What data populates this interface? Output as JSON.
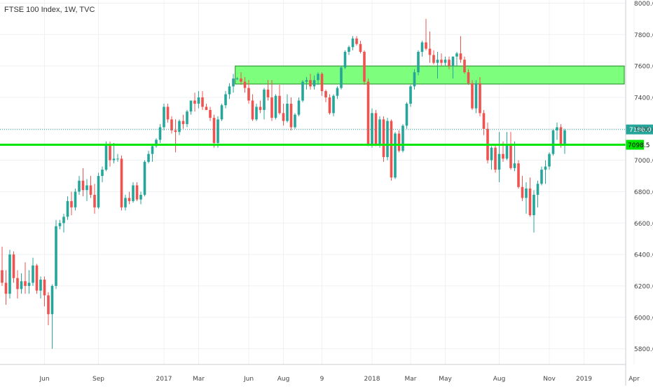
{
  "header": {
    "title": "FTSE 100 Index, 1W, TVC"
  },
  "chart_data": {
    "type": "candlestick",
    "title": "FTSE 100 Index, 1W, TVC",
    "ylim": [
      5700,
      8020
    ],
    "y_ticks": [
      5800,
      6000,
      6200,
      6400,
      6600,
      6800,
      7000,
      7200,
      7400,
      7600,
      7800,
      8000
    ],
    "x_ticks": [
      {
        "label": "Jun",
        "index": 11
      },
      {
        "label": "Sep",
        "index": 25
      },
      {
        "label": "2017",
        "index": 42
      },
      {
        "label": "Mar",
        "index": 51
      },
      {
        "label": "Jun",
        "index": 64
      },
      {
        "label": "Aug",
        "index": 73
      },
      {
        "label": "9",
        "index": 83
      },
      {
        "label": "2018",
        "index": 96
      },
      {
        "label": "Mar",
        "index": 106
      },
      {
        "label": "May",
        "index": 115
      },
      {
        "label": "Aug",
        "index": 129
      },
      {
        "label": "Nov",
        "index": 142
      },
      {
        "label": "2019",
        "index": 151
      },
      {
        "label": "Apr",
        "index": 164
      }
    ],
    "price_line": {
      "value": 7196.0,
      "label": "7196.0"
    },
    "support_line": {
      "value": 7098.5,
      "label": "7098.5",
      "color": "#00e600"
    },
    "resistance_zone": {
      "from_index": 61,
      "to_index": 171,
      "low": 7485,
      "high": 7600,
      "color": "#7dff7d"
    },
    "colors": {
      "up": "#26a69a",
      "down": "#ef5350"
    },
    "candles": [
      [
        6300,
        6450,
        6200,
        6220
      ],
      [
        6220,
        6300,
        6080,
        6150
      ],
      [
        6150,
        6430,
        6120,
        6400
      ],
      [
        6400,
        6420,
        6220,
        6250
      ],
      [
        6250,
        6300,
        6120,
        6180
      ],
      [
        6180,
        6280,
        6150,
        6230
      ],
      [
        6230,
        6350,
        6150,
        6200
      ],
      [
        6200,
        6300,
        6150,
        6220
      ],
      [
        6220,
        6380,
        6200,
        6330
      ],
      [
        6330,
        6340,
        6150,
        6170
      ],
      [
        6170,
        6260,
        6120,
        6240
      ],
      [
        6240,
        6260,
        6070,
        6140
      ],
      [
        6140,
        6160,
        5950,
        6020
      ],
      [
        6020,
        6210,
        5800,
        6200
      ],
      [
        6200,
        6620,
        6180,
        6580
      ],
      [
        6580,
        6620,
        6560,
        6600
      ],
      [
        6600,
        6660,
        6540,
        6640
      ],
      [
        6640,
        6770,
        6620,
        6740
      ],
      [
        6740,
        6800,
        6650,
        6700
      ],
      [
        6700,
        6820,
        6680,
        6800
      ],
      [
        6800,
        6900,
        6780,
        6870
      ],
      [
        6870,
        6950,
        6770,
        6810
      ],
      [
        6810,
        6880,
        6740,
        6840
      ],
      [
        6840,
        6900,
        6760,
        6780
      ],
      [
        6780,
        6850,
        6660,
        6700
      ],
      [
        6700,
        6920,
        6690,
        6900
      ],
      [
        6900,
        6960,
        6860,
        6940
      ],
      [
        6940,
        7120,
        6930,
        7100
      ],
      [
        7100,
        7120,
        6960,
        7000
      ],
      [
        7000,
        7110,
        6980,
        7010
      ],
      [
        7010,
        7040,
        6990,
        7010
      ],
      [
        7010,
        7030,
        6680,
        6700
      ],
      [
        6700,
        6780,
        6680,
        6760
      ],
      [
        6760,
        6800,
        6720,
        6740
      ],
      [
        6740,
        6860,
        6730,
        6840
      ],
      [
        6840,
        6860,
        6740,
        6750
      ],
      [
        6750,
        6800,
        6720,
        6780
      ],
      [
        6780,
        7000,
        6770,
        6990
      ],
      [
        6990,
        7060,
        6980,
        7040
      ],
      [
        7040,
        7100,
        6990,
        7090
      ],
      [
        7090,
        7140,
        7080,
        7130
      ],
      [
        7130,
        7230,
        7110,
        7210
      ],
      [
        7210,
        7360,
        7190,
        7340
      ],
      [
        7340,
        7360,
        7240,
        7260
      ],
      [
        7260,
        7280,
        7170,
        7190
      ],
      [
        7190,
        7260,
        7050,
        7180
      ],
      [
        7180,
        7260,
        7160,
        7250
      ],
      [
        7250,
        7290,
        7200,
        7230
      ],
      [
        7230,
        7320,
        7210,
        7310
      ],
      [
        7310,
        7380,
        7290,
        7380
      ],
      [
        7380,
        7430,
        7310,
        7360
      ],
      [
        7360,
        7440,
        7330,
        7400
      ],
      [
        7400,
        7440,
        7320,
        7340
      ],
      [
        7340,
        7360,
        7320,
        7320
      ],
      [
        7320,
        7340,
        7250,
        7270
      ],
      [
        7270,
        7290,
        7080,
        7110
      ],
      [
        7110,
        7280,
        7080,
        7260
      ],
      [
        7260,
        7360,
        7250,
        7350
      ],
      [
        7350,
        7440,
        7330,
        7420
      ],
      [
        7420,
        7490,
        7390,
        7470
      ],
      [
        7470,
        7550,
        7430,
        7520
      ],
      [
        7520,
        7530,
        7510,
        7520
      ],
      [
        7520,
        7560,
        7480,
        7500
      ],
      [
        7500,
        7530,
        7430,
        7460
      ],
      [
        7460,
        7510,
        7360,
        7380
      ],
      [
        7380,
        7420,
        7250,
        7260
      ],
      [
        7260,
        7360,
        7250,
        7340
      ],
      [
        7340,
        7380,
        7300,
        7320
      ],
      [
        7320,
        7460,
        7260,
        7450
      ],
      [
        7450,
        7510,
        7380,
        7400
      ],
      [
        7400,
        7510,
        7250,
        7270
      ],
      [
        7270,
        7420,
        7260,
        7410
      ],
      [
        7410,
        7480,
        7290,
        7300
      ],
      [
        7300,
        7360,
        7220,
        7250
      ],
      [
        7250,
        7420,
        7240,
        7360
      ],
      [
        7360,
        7400,
        7190,
        7210
      ],
      [
        7210,
        7300,
        7200,
        7290
      ],
      [
        7290,
        7400,
        7280,
        7380
      ],
      [
        7380,
        7510,
        7370,
        7500
      ],
      [
        7500,
        7530,
        7450,
        7510
      ],
      [
        7510,
        7550,
        7450,
        7470
      ],
      [
        7470,
        7540,
        7450,
        7510
      ],
      [
        7510,
        7560,
        7480,
        7550
      ],
      [
        7550,
        7560,
        7410,
        7440
      ],
      [
        7440,
        7450,
        7370,
        7400
      ],
      [
        7400,
        7420,
        7290,
        7300
      ],
      [
        7300,
        7420,
        7280,
        7410
      ],
      [
        7410,
        7470,
        7390,
        7460
      ],
      [
        7460,
        7600,
        7450,
        7590
      ],
      [
        7590,
        7700,
        7580,
        7690
      ],
      [
        7690,
        7730,
        7670,
        7720
      ],
      [
        7720,
        7790,
        7700,
        7775
      ],
      [
        7775,
        7790,
        7730,
        7740
      ],
      [
        7740,
        7760,
        7680,
        7690
      ],
      [
        7690,
        7700,
        7480,
        7500
      ],
      [
        7500,
        7520,
        7090,
        7100
      ],
      [
        7100,
        7330,
        7080,
        7300
      ],
      [
        7300,
        7320,
        7090,
        7100
      ],
      [
        7100,
        7280,
        7080,
        7260
      ],
      [
        7260,
        7280,
        6990,
        7020
      ],
      [
        7020,
        7270,
        7000,
        7250
      ],
      [
        7250,
        7260,
        6870,
        6890
      ],
      [
        6890,
        7180,
        6880,
        7170
      ],
      [
        7170,
        7190,
        7050,
        7060
      ],
      [
        7060,
        7230,
        7050,
        7220
      ],
      [
        7220,
        7370,
        7200,
        7360
      ],
      [
        7360,
        7480,
        7340,
        7470
      ],
      [
        7470,
        7580,
        7450,
        7560
      ],
      [
        7560,
        7700,
        7540,
        7690
      ],
      [
        7690,
        7760,
        7660,
        7750
      ],
      [
        7750,
        7900,
        7700,
        7710
      ],
      [
        7710,
        7820,
        7620,
        7670
      ],
      [
        7670,
        7700,
        7610,
        7620
      ],
      [
        7620,
        7690,
        7520,
        7640
      ],
      [
        7640,
        7680,
        7600,
        7620
      ],
      [
        7620,
        7660,
        7600,
        7640
      ],
      [
        7640,
        7660,
        7580,
        7600
      ],
      [
        7600,
        7660,
        7520,
        7660
      ],
      [
        7660,
        7690,
        7600,
        7680
      ],
      [
        7680,
        7790,
        7620,
        7640
      ],
      [
        7640,
        7660,
        7550,
        7560
      ],
      [
        7560,
        7580,
        7480,
        7490
      ],
      [
        7490,
        7510,
        7320,
        7330
      ],
      [
        7330,
        7510,
        7300,
        7490
      ],
      [
        7490,
        7530,
        7280,
        7300
      ],
      [
        7300,
        7320,
        7160,
        7200
      ],
      [
        7200,
        7240,
        6980,
        7000
      ],
      [
        7000,
        7090,
        6940,
        7080
      ],
      [
        7080,
        7100,
        6920,
        6940
      ],
      [
        6940,
        7180,
        6860,
        7040
      ],
      [
        7040,
        7120,
        6990,
        7010
      ],
      [
        7010,
        7180,
        7000,
        7100
      ],
      [
        7100,
        7180,
        6940,
        6950
      ],
      [
        6950,
        7120,
        6930,
        6980
      ],
      [
        6980,
        7000,
        6820,
        6830
      ],
      [
        6830,
        6900,
        6740,
        6760
      ],
      [
        6760,
        6860,
        6660,
        6820
      ],
      [
        6820,
        6890,
        6640,
        6650
      ],
      [
        6650,
        6810,
        6540,
        6780
      ],
      [
        6780,
        6870,
        6700,
        6850
      ],
      [
        6850,
        6960,
        6840,
        6940
      ],
      [
        6940,
        7000,
        6850,
        6960
      ],
      [
        6960,
        7050,
        6940,
        7040
      ],
      [
        7040,
        7200,
        7030,
        7190
      ],
      [
        7190,
        7240,
        7130,
        7210
      ],
      [
        7210,
        7230,
        7080,
        7100
      ],
      [
        7100,
        7200,
        7040,
        7190
      ]
    ]
  }
}
